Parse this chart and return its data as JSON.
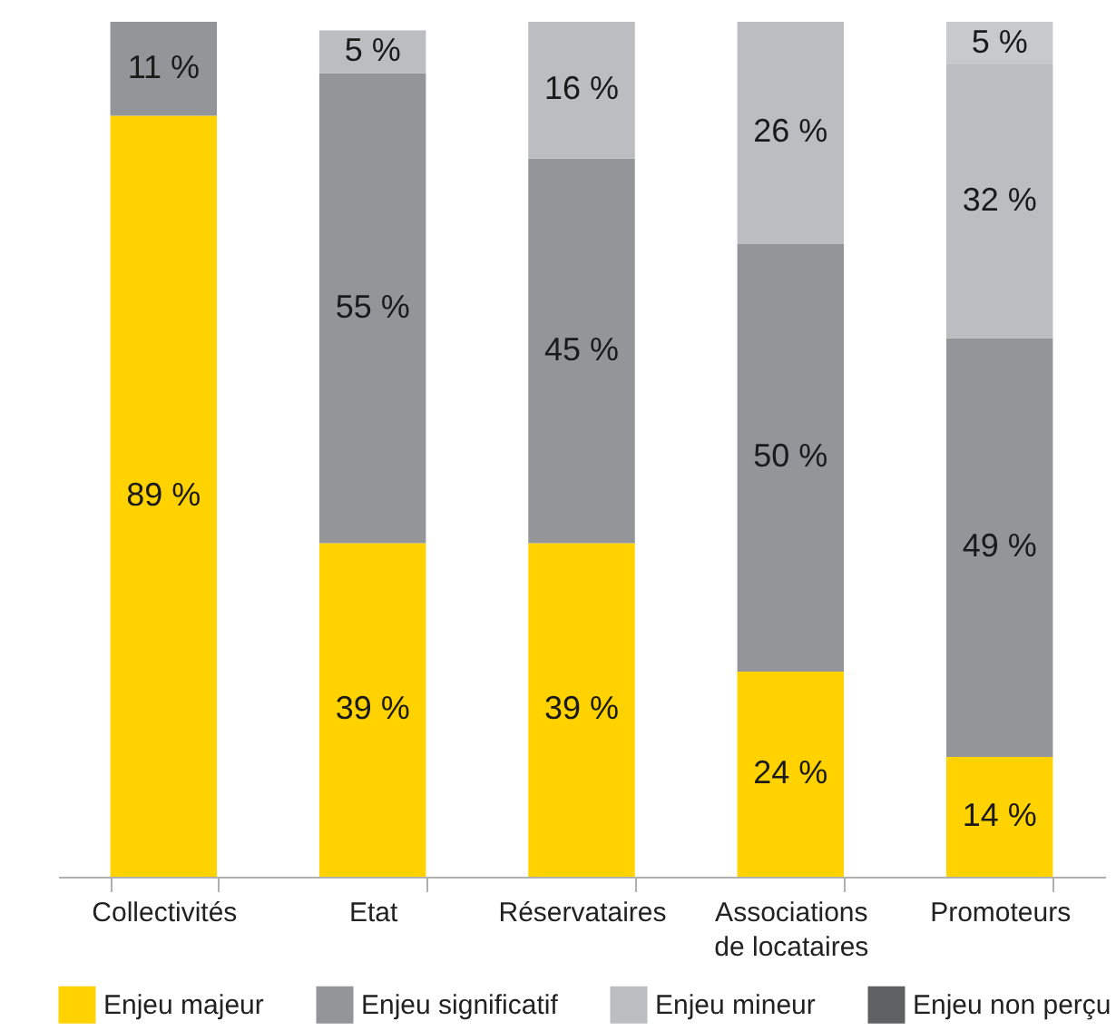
{
  "chart_data": {
    "type": "bar",
    "stacked": true,
    "categories": [
      "Collectivités",
      "Etat",
      "Réservataires",
      "Associations de locataires",
      "Promoteurs"
    ],
    "ylim": [
      0,
      100
    ],
    "tick_labels": "x",
    "legend": "bottom",
    "series": [
      {
        "name": "Enjeu majeur",
        "color": "#ffd200",
        "values": [
          89,
          39,
          39,
          24,
          14
        ],
        "value_labels": [
          "89 %",
          "39 %",
          "39 %",
          "24 %",
          "14 %"
        ]
      },
      {
        "name": "Enjeu significatif",
        "color": "#939598",
        "values": [
          11,
          55,
          45,
          50,
          49
        ],
        "value_labels": [
          "11 %",
          "55 %",
          "45 %",
          "50 %",
          "49 %"
        ]
      },
      {
        "name": "Enjeu mineur",
        "color": "#bcbdc0",
        "values": [
          null,
          5,
          16,
          26,
          32
        ],
        "value_labels": [
          null,
          "5 %",
          "16 %",
          "26 %",
          "32 %"
        ]
      },
      {
        "color": "#c8c9cb",
        "values": [
          null,
          null,
          null,
          null,
          5
        ],
        "value_labels": [
          null,
          null,
          null,
          null,
          "5 %"
        ]
      },
      {
        "name": "Enjeu non perçu",
        "color": "#5f6062",
        "values": [
          null,
          null,
          null,
          null,
          null
        ]
      }
    ]
  }
}
